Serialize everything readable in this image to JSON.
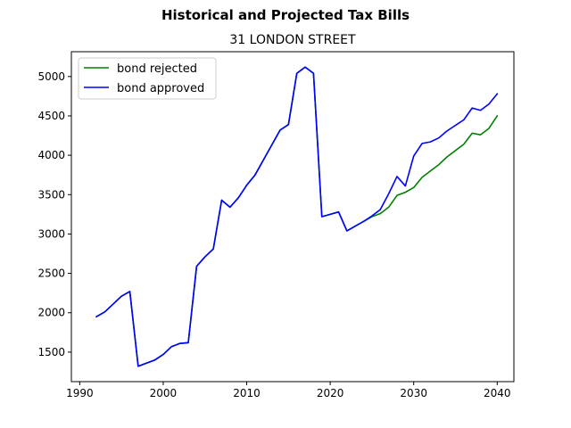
{
  "chart_data": {
    "type": "line",
    "suptitle": "Historical and Projected Tax Bills",
    "title": "31 LONDON STREET",
    "xlabel": "",
    "ylabel": "",
    "xlim": [
      1989,
      2042
    ],
    "ylim": [
      1125,
      5315
    ],
    "xticks": [
      1990,
      2000,
      2010,
      2020,
      2030,
      2040
    ],
    "yticks": [
      1500,
      2000,
      2500,
      3000,
      3500,
      4000,
      4500,
      5000
    ],
    "grid": false,
    "legend_position": "upper left",
    "series": [
      {
        "name": "bond rejected",
        "color": "#008000",
        "x": [
          1992,
          1993,
          1994,
          1995,
          1996,
          1997,
          1998,
          1999,
          2000,
          2001,
          2002,
          2003,
          2004,
          2005,
          2006,
          2007,
          2008,
          2009,
          2010,
          2011,
          2012,
          2013,
          2014,
          2015,
          2016,
          2017,
          2018,
          2019,
          2020,
          2021,
          2022,
          2023,
          2024,
          2025,
          2026,
          2027,
          2028,
          2029,
          2030,
          2031,
          2032,
          2033,
          2034,
          2035,
          2036,
          2037,
          2038,
          2039,
          2040
        ],
        "values": [
          1950,
          2010,
          2110,
          2210,
          2270,
          1320,
          1360,
          1400,
          1470,
          1570,
          1610,
          1620,
          2590,
          2710,
          2810,
          3430,
          3340,
          3460,
          3620,
          3750,
          3940,
          4130,
          4320,
          4390,
          5040,
          5120,
          5040,
          3220,
          3250,
          3280,
          3040,
          3100,
          3160,
          3220,
          3260,
          3340,
          3490,
          3530,
          3590,
          3720,
          3800,
          3880,
          3980,
          4060,
          4140,
          4280,
          4260,
          4340,
          4500
        ]
      },
      {
        "name": "bond approved",
        "color": "#0000ff",
        "x": [
          1992,
          1993,
          1994,
          1995,
          1996,
          1997,
          1998,
          1999,
          2000,
          2001,
          2002,
          2003,
          2004,
          2005,
          2006,
          2007,
          2008,
          2009,
          2010,
          2011,
          2012,
          2013,
          2014,
          2015,
          2016,
          2017,
          2018,
          2019,
          2020,
          2021,
          2022,
          2023,
          2024,
          2025,
          2026,
          2027,
          2028,
          2029,
          2030,
          2031,
          2032,
          2033,
          2034,
          2035,
          2036,
          2037,
          2038,
          2039,
          2040
        ],
        "values": [
          1950,
          2010,
          2110,
          2210,
          2270,
          1320,
          1360,
          1400,
          1470,
          1570,
          1610,
          1620,
          2590,
          2710,
          2810,
          3430,
          3340,
          3460,
          3620,
          3750,
          3940,
          4130,
          4320,
          4390,
          5040,
          5120,
          5040,
          3220,
          3250,
          3280,
          3040,
          3100,
          3160,
          3230,
          3310,
          3510,
          3730,
          3610,
          3990,
          4150,
          4170,
          4220,
          4310,
          4380,
          4450,
          4600,
          4570,
          4650,
          4780
        ]
      }
    ]
  }
}
